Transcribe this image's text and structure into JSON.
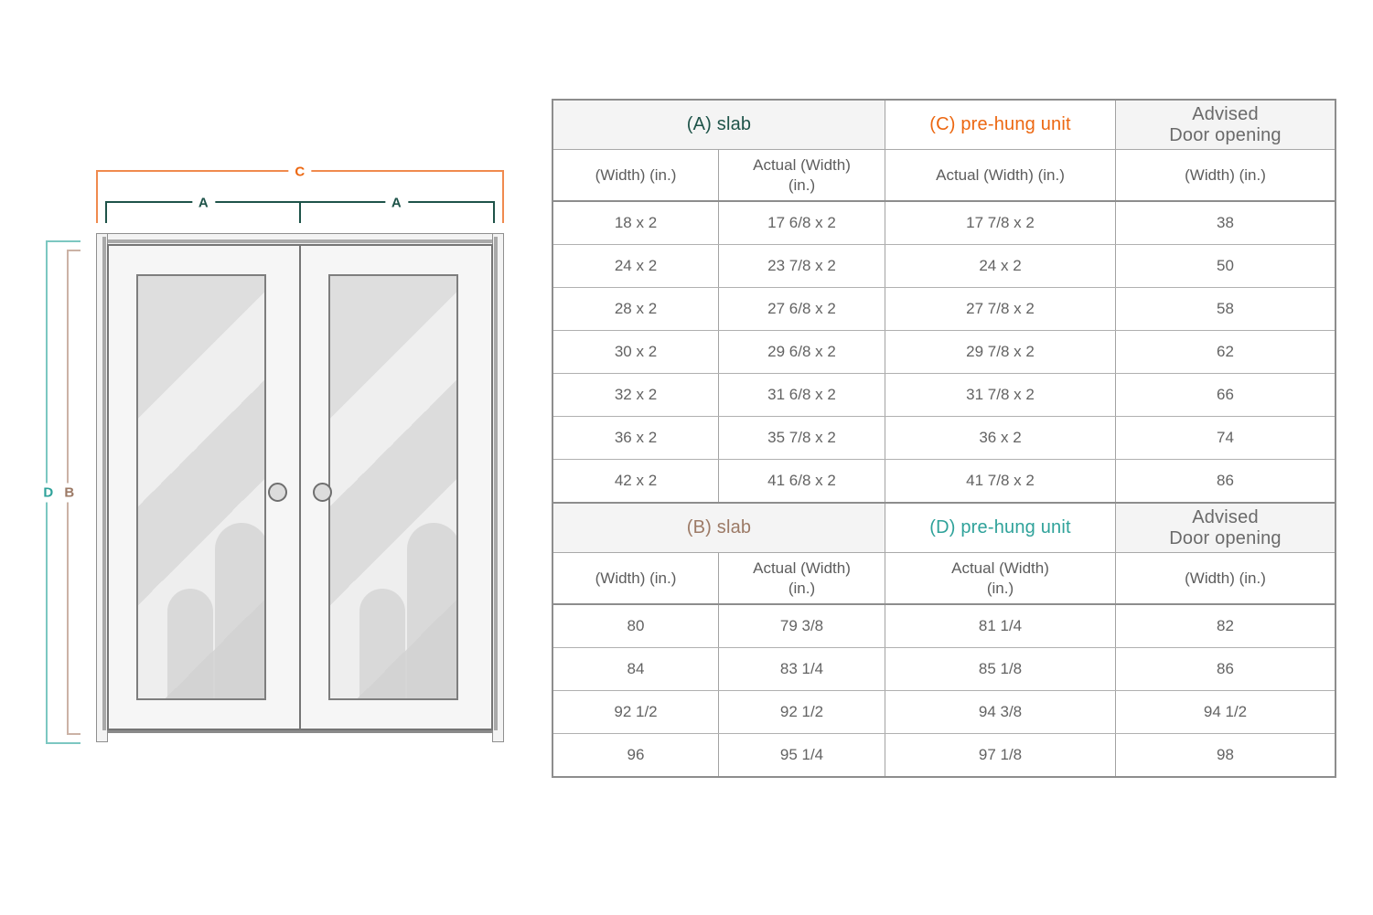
{
  "colors": {
    "teal-dark": "#1e5349",
    "orange": "#ec6711",
    "orange-line": "#f08a4e",
    "teal": "#2fa29a",
    "teal-line": "#7cc7c1",
    "brown": "#9c7a66",
    "brown-line": "#cbb2a5",
    "txt": "#636363",
    "sub": "#5d5d5d",
    "muted": "#6a6a6a",
    "grid": "#a2a2a2",
    "grid-light": "#b0b0b0",
    "grid-dark": "#8d8d8d"
  },
  "diagram": {
    "labels": {
      "c": "C",
      "a": "A",
      "d": "D",
      "b": "B"
    }
  },
  "table": {
    "sections": [
      {
        "group": [
          "(A) slab",
          "(C) pre-hung unit",
          "Advised\nDoor opening"
        ],
        "col_headers": [
          "(Width) (in.)",
          "Actual (Width)\n(in.)",
          "Actual (Width) (in.)",
          "(Width) (in.)"
        ],
        "rows": [
          [
            "18 x 2",
            "17 6/8 x 2",
            "17 7/8 x 2",
            "38"
          ],
          [
            "24 x 2",
            "23 7/8 x 2",
            "24 x 2",
            "50"
          ],
          [
            "28 x 2",
            "27 6/8 x 2",
            "27 7/8 x 2",
            "58"
          ],
          [
            "30 x 2",
            "29 6/8 x 2",
            "29 7/8 x 2",
            "62"
          ],
          [
            "32 x 2",
            "31 6/8 x 2",
            "31 7/8 x 2",
            "66"
          ],
          [
            "36 x 2",
            "35 7/8 x 2",
            "36 x 2",
            "74"
          ],
          [
            "42 x 2",
            "41 6/8 x 2",
            "41 7/8 x 2",
            "86"
          ]
        ]
      },
      {
        "group": [
          "(B) slab",
          "(D) pre-hung unit",
          "Advised\nDoor opening"
        ],
        "col_headers": [
          "(Width) (in.)",
          "Actual (Width)\n(in.)",
          "Actual (Width)\n(in.)",
          "(Width) (in.)"
        ],
        "rows": [
          [
            "80",
            "79 3/8",
            "81 1/4",
            "82"
          ],
          [
            "84",
            "83 1/4",
            "85 1/8",
            "86"
          ],
          [
            "92 1/2",
            "92 1/2",
            "94 3/8",
            "94 1/2"
          ],
          [
            "96",
            "95 1/4",
            "97 1/8",
            "98"
          ]
        ]
      }
    ]
  }
}
